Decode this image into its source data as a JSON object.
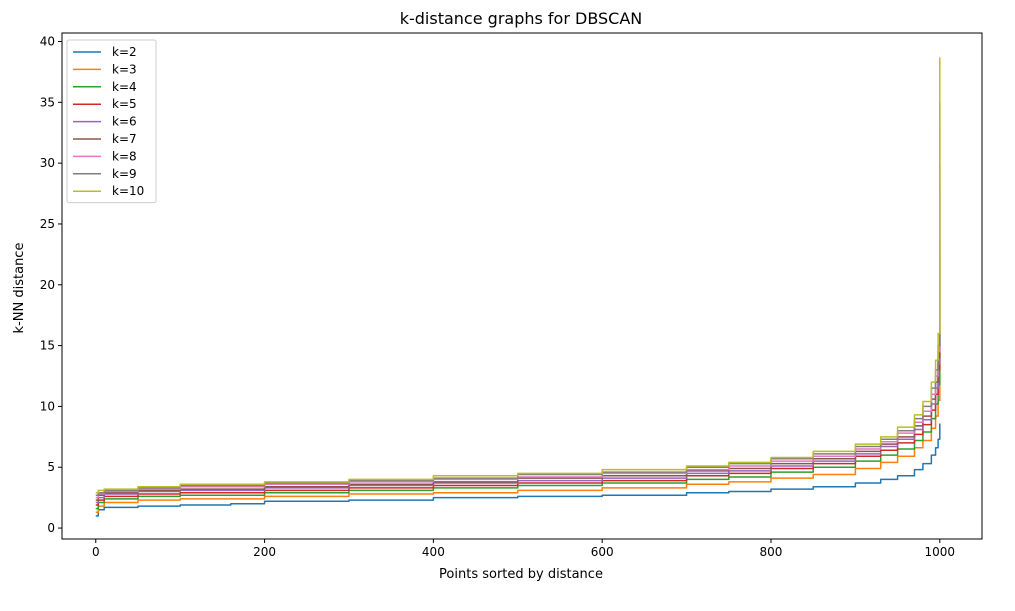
{
  "chart_data": {
    "type": "line",
    "title": "k-distance graphs for DBSCAN",
    "xlabel": "Points sorted by distance",
    "ylabel": "k-NN distance",
    "xlim": [
      -40,
      1050
    ],
    "ylim": [
      -0.9,
      40.7
    ],
    "x_ticks": [
      0,
      200,
      400,
      600,
      800,
      1000
    ],
    "y_ticks": [
      0,
      5,
      10,
      15,
      20,
      25,
      30,
      35,
      40
    ],
    "grid": false,
    "legend_position": "top-left",
    "series": [
      {
        "name": "k=2",
        "color": "#1f77b4",
        "x": [
          0,
          3,
          10,
          50,
          100,
          160,
          200,
          300,
          400,
          450,
          500,
          600,
          700,
          750,
          800,
          850,
          900,
          930,
          950,
          970,
          980,
          990,
          995,
          998,
          1000
        ],
        "values": [
          1.0,
          1.5,
          1.7,
          1.8,
          1.9,
          2.0,
          2.2,
          2.3,
          2.5,
          2.5,
          2.6,
          2.7,
          2.9,
          3.0,
          3.2,
          3.4,
          3.7,
          4.0,
          4.3,
          4.8,
          5.3,
          6.0,
          6.6,
          7.3,
          8.6
        ]
      },
      {
        "name": "k=3",
        "color": "#ff7f0e",
        "x": [
          0,
          3,
          10,
          50,
          100,
          200,
          300,
          400,
          500,
          600,
          700,
          750,
          800,
          850,
          900,
          930,
          950,
          970,
          980,
          990,
          995,
          998,
          1000
        ],
        "values": [
          1.3,
          1.8,
          2.1,
          2.3,
          2.4,
          2.6,
          2.8,
          2.9,
          3.1,
          3.3,
          3.6,
          3.8,
          4.1,
          4.4,
          4.9,
          5.4,
          5.9,
          6.6,
          7.2,
          8.2,
          9.2,
          10.5,
          17.0
        ]
      },
      {
        "name": "k=4",
        "color": "#2ca02c",
        "x": [
          0,
          3,
          10,
          50,
          100,
          200,
          300,
          400,
          500,
          600,
          700,
          750,
          800,
          850,
          900,
          930,
          950,
          970,
          980,
          990,
          995,
          998,
          1000
        ],
        "values": [
          1.6,
          2.1,
          2.4,
          2.6,
          2.7,
          2.9,
          3.1,
          3.3,
          3.5,
          3.7,
          4.0,
          4.2,
          4.6,
          5.0,
          5.5,
          6.0,
          6.5,
          7.2,
          7.9,
          9.0,
          10.2,
          11.8,
          22.5
        ]
      },
      {
        "name": "k=5",
        "color": "#d62728",
        "x": [
          0,
          3,
          10,
          50,
          100,
          200,
          300,
          400,
          500,
          600,
          700,
          750,
          800,
          850,
          900,
          930,
          950,
          970,
          980,
          990,
          995,
          998,
          1000
        ],
        "values": [
          1.9,
          2.3,
          2.6,
          2.8,
          2.9,
          3.1,
          3.3,
          3.5,
          3.7,
          3.9,
          4.3,
          4.5,
          4.9,
          5.3,
          5.9,
          6.4,
          7.0,
          7.7,
          8.5,
          9.7,
          11.0,
          13.0,
          23.5
        ]
      },
      {
        "name": "k=6",
        "color": "#9467bd",
        "x": [
          0,
          3,
          10,
          50,
          100,
          200,
          300,
          400,
          500,
          600,
          700,
          750,
          800,
          850,
          900,
          930,
          950,
          970,
          980,
          990,
          995,
          998,
          1000
        ],
        "values": [
          2.1,
          2.5,
          2.8,
          3.0,
          3.1,
          3.3,
          3.5,
          3.7,
          3.9,
          4.1,
          4.5,
          4.7,
          5.1,
          5.5,
          6.1,
          6.7,
          7.3,
          8.1,
          8.9,
          10.2,
          11.5,
          13.5,
          28.0
        ]
      },
      {
        "name": "k=7",
        "color": "#8c564b",
        "x": [
          0,
          3,
          10,
          50,
          100,
          200,
          300,
          400,
          500,
          600,
          700,
          750,
          800,
          850,
          900,
          930,
          950,
          970,
          980,
          990,
          995,
          998,
          1000
        ],
        "values": [
          2.3,
          2.7,
          2.9,
          3.1,
          3.2,
          3.4,
          3.6,
          3.8,
          4.1,
          4.3,
          4.7,
          4.9,
          5.3,
          5.7,
          6.3,
          6.9,
          7.5,
          8.4,
          9.2,
          10.6,
          12.0,
          14.0,
          30.0
        ]
      },
      {
        "name": "k=8",
        "color": "#e377c2",
        "x": [
          0,
          3,
          10,
          50,
          100,
          200,
          300,
          400,
          500,
          600,
          700,
          750,
          800,
          850,
          900,
          930,
          950,
          970,
          980,
          990,
          995,
          998,
          1000
        ],
        "values": [
          2.5,
          2.8,
          3.0,
          3.2,
          3.4,
          3.6,
          3.8,
          4.0,
          4.2,
          4.5,
          4.8,
          5.1,
          5.5,
          5.9,
          6.5,
          7.1,
          7.8,
          8.7,
          9.6,
          11.0,
          12.5,
          14.5,
          33.0
        ]
      },
      {
        "name": "k=9",
        "color": "#7f7f7f",
        "x": [
          0,
          3,
          10,
          50,
          100,
          200,
          300,
          400,
          500,
          600,
          700,
          750,
          800,
          850,
          900,
          930,
          950,
          970,
          980,
          990,
          995,
          998,
          1000
        ],
        "values": [
          2.7,
          2.9,
          3.1,
          3.3,
          3.5,
          3.7,
          3.9,
          4.1,
          4.4,
          4.6,
          5.0,
          5.3,
          5.7,
          6.1,
          6.7,
          7.3,
          8.0,
          9.0,
          10.0,
          11.5,
          13.0,
          15.0,
          35.0
        ]
      },
      {
        "name": "k=10",
        "color": "#bcbd22",
        "x": [
          0,
          3,
          10,
          50,
          100,
          200,
          300,
          400,
          500,
          600,
          700,
          750,
          800,
          850,
          900,
          930,
          950,
          970,
          980,
          990,
          995,
          998,
          1000
        ],
        "values": [
          2.9,
          3.1,
          3.2,
          3.4,
          3.6,
          3.8,
          4.0,
          4.3,
          4.5,
          4.8,
          5.1,
          5.4,
          5.8,
          6.3,
          6.9,
          7.5,
          8.3,
          9.3,
          10.4,
          12.0,
          13.8,
          16.0,
          38.7
        ]
      }
    ]
  }
}
